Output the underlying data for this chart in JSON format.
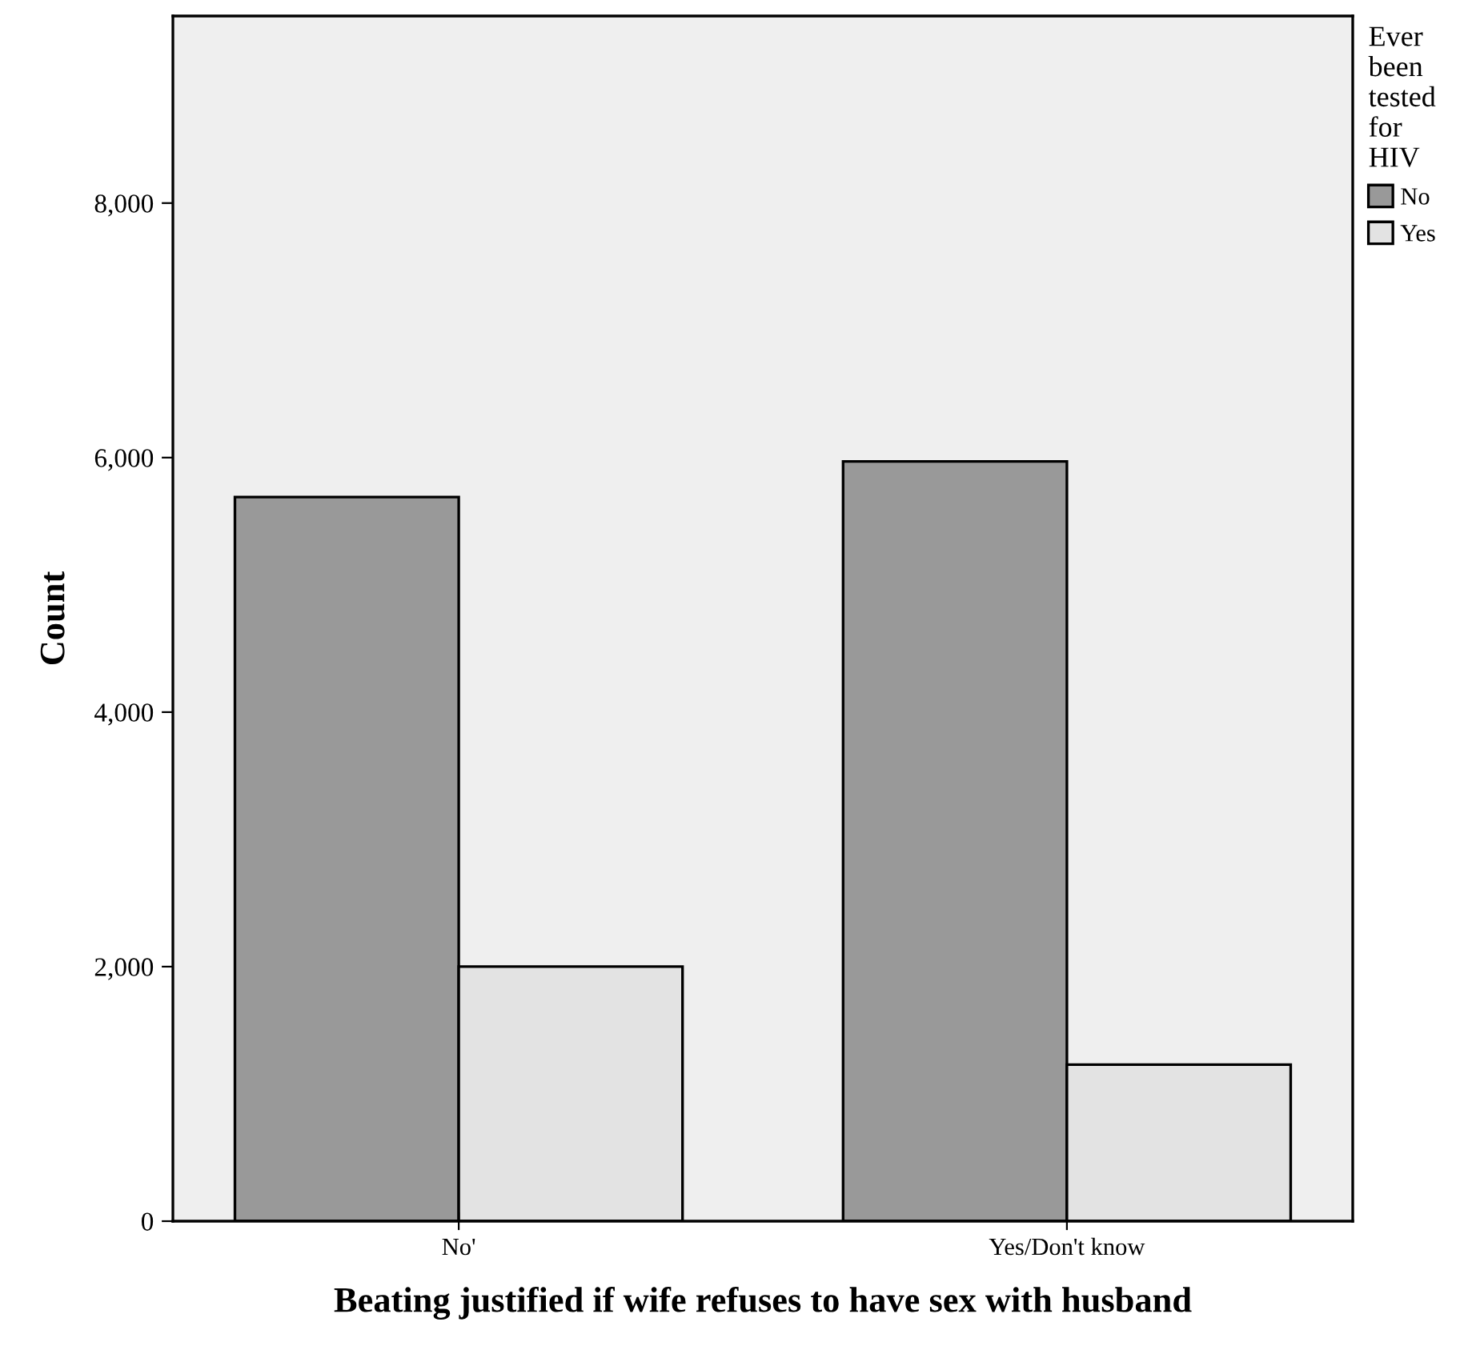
{
  "chart_data": {
    "type": "bar",
    "xlabel": "Beating justified if wife refuses to have sex with husband",
    "ylabel": "Count",
    "legend_title": "Ever been tested for HIV",
    "categories": [
      "No'",
      "Yes/Don't know"
    ],
    "series": [
      {
        "name": "No",
        "color": "#999999",
        "values": [
          5690,
          5970
        ]
      },
      {
        "name": "Yes",
        "color": "#e3e3e3",
        "values": [
          2000,
          1230
        ]
      }
    ],
    "ylim": [
      0,
      9470
    ],
    "yticks": [
      0,
      {
        "value": 2000,
        "label": "2,000"
      },
      {
        "value": 4000,
        "label": "4,000"
      },
      {
        "value": 6000,
        "label": "6,000"
      },
      {
        "value": 8000,
        "label": "8,000"
      }
    ],
    "grid": false,
    "legend": "right"
  }
}
